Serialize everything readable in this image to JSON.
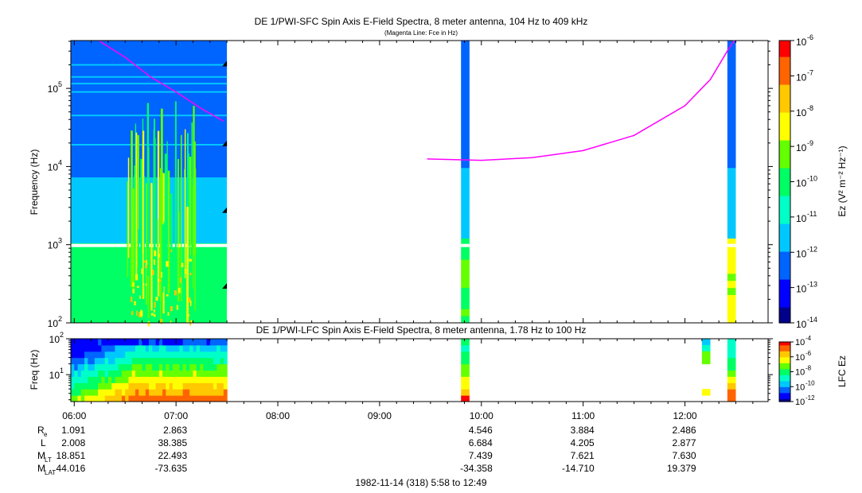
{
  "top_panel": {
    "title": "DE 1/PWI-SFC  Spin Axis E-Field Spectra, 8 meter antenna, 104 Hz to 409 kHz",
    "subtitle": "(Magenta Line: Fce in Hz)",
    "ylabel": "Frequency (Hz)",
    "yticks": [
      {
        "value": 100,
        "base": "10",
        "exp": "2"
      },
      {
        "value": 1000,
        "base": "10",
        "exp": "3"
      },
      {
        "value": 10000,
        "base": "10",
        "exp": "4"
      },
      {
        "value": 100000,
        "base": "10",
        "exp": "5"
      }
    ],
    "colorbar_label": "Ez (V² m⁻² Hz⁻¹)",
    "colorbar_ticks": [
      {
        "exp": "-6"
      },
      {
        "exp": "-7"
      },
      {
        "exp": "-8"
      },
      {
        "exp": "-9"
      },
      {
        "exp": "-10"
      },
      {
        "exp": "-11"
      },
      {
        "exp": "-12"
      },
      {
        "exp": "-13"
      },
      {
        "exp": "-14"
      }
    ]
  },
  "bottom_panel": {
    "title": "DE 1/PWI-LFC  Spin Axis E-Field Spectra, 8 meter antenna, 1.78 Hz to 100 Hz",
    "ylabel": "Freq (Hz)",
    "yticks": [
      {
        "value": 10,
        "base": "10",
        "exp": "1"
      },
      {
        "value": 100,
        "base": "10",
        "exp": "2"
      }
    ],
    "colorbar_label": "LFC Ez",
    "colorbar_ticks": [
      {
        "exp": "-4"
      },
      {
        "exp": "-6"
      },
      {
        "exp": "-8"
      },
      {
        "exp": "-10"
      },
      {
        "exp": "-12"
      }
    ]
  },
  "xaxis": {
    "ticks": [
      "06:00",
      "07:00",
      "08:00",
      "09:00",
      "10:00",
      "11:00",
      "12:00"
    ]
  },
  "ephemeris": {
    "rows": [
      {
        "label": "R",
        "sub": "e",
        "values": [
          "1.091",
          "2.863",
          "",
          "",
          "4.546",
          "3.884",
          "2.486"
        ]
      },
      {
        "label": "L",
        "sub": "",
        "values": [
          "2.008",
          "38.385",
          "",
          "",
          "6.684",
          "4.205",
          "2.877"
        ]
      },
      {
        "label": "M",
        "sub": "LT",
        "values": [
          "18.851",
          "22.493",
          "",
          "",
          "7.439",
          "7.621",
          "7.630"
        ]
      },
      {
        "label": "M",
        "sub": "LAT",
        "values": [
          "44.016",
          "-73.635",
          "",
          "",
          "-34.358",
          "-14.710",
          "19.379"
        ]
      }
    ]
  },
  "footer": "1982-11-14 (318) 5:58 to 12:49",
  "colors": {
    "fce_line": "#ff00ff",
    "background": "#ffffff",
    "scale": [
      "#00008c",
      "#0000ff",
      "#0064ff",
      "#00c8ff",
      "#00ffc8",
      "#00ff64",
      "#64ff00",
      "#ffff00",
      "#ffc800",
      "#ff6400",
      "#ff0000"
    ]
  },
  "chart_data": [
    {
      "type": "heatmap",
      "title": "DE 1/PWI-SFC  Spin Axis E-Field Spectra, 8 meter antenna, 104 Hz to 409 kHz",
      "ylabel": "Frequency (Hz)",
      "y_scale": "log",
      "ylim": [
        100,
        409000
      ],
      "xlim": [
        "05:58",
        "12:49"
      ],
      "data_intervals": [
        [
          "05:58",
          "07:30"
        ],
        [
          "09:48",
          "09:53"
        ],
        [
          "12:25",
          "12:30"
        ]
      ],
      "series": [
        {
          "name": "Fce in Hz",
          "points": [
            {
              "x": "06:15",
              "y": 400000
            },
            {
              "x": "06:30",
              "y": 250000
            },
            {
              "x": "06:45",
              "y": 140000
            },
            {
              "x": "07:00",
              "y": 90000
            },
            {
              "x": "07:15",
              "y": 55000
            },
            {
              "x": "07:28",
              "y": 38000
            },
            {
              "x": "09:28",
              "y": 12500
            },
            {
              "x": "10:00",
              "y": 12000
            },
            {
              "x": "10:30",
              "y": 13000
            },
            {
              "x": "11:00",
              "y": 16000
            },
            {
              "x": "11:30",
              "y": 25000
            },
            {
              "x": "12:00",
              "y": 60000
            },
            {
              "x": "12:15",
              "y": 130000
            },
            {
              "x": "12:25",
              "y": 300000
            },
            {
              "x": "12:29",
              "y": 409000
            }
          ]
        }
      ],
      "colorbar": {
        "label": "Ez (V² m⁻² Hz⁻¹)",
        "scale": "log",
        "range": [
          1e-14,
          1e-06
        ]
      }
    },
    {
      "type": "heatmap",
      "title": "DE 1/PWI-LFC  Spin Axis E-Field Spectra, 8 meter antenna, 1.78 Hz to 100 Hz",
      "ylabel": "Freq (Hz)",
      "y_scale": "log",
      "ylim": [
        1.78,
        100
      ],
      "data_intervals": [
        [
          "05:58",
          "07:30"
        ],
        [
          "09:48",
          "09:53"
        ],
        [
          "12:10",
          "12:15"
        ],
        [
          "12:25",
          "12:30"
        ]
      ],
      "colorbar": {
        "label": "LFC Ez",
        "scale": "log",
        "range": [
          1e-12,
          0.0001
        ]
      }
    }
  ]
}
